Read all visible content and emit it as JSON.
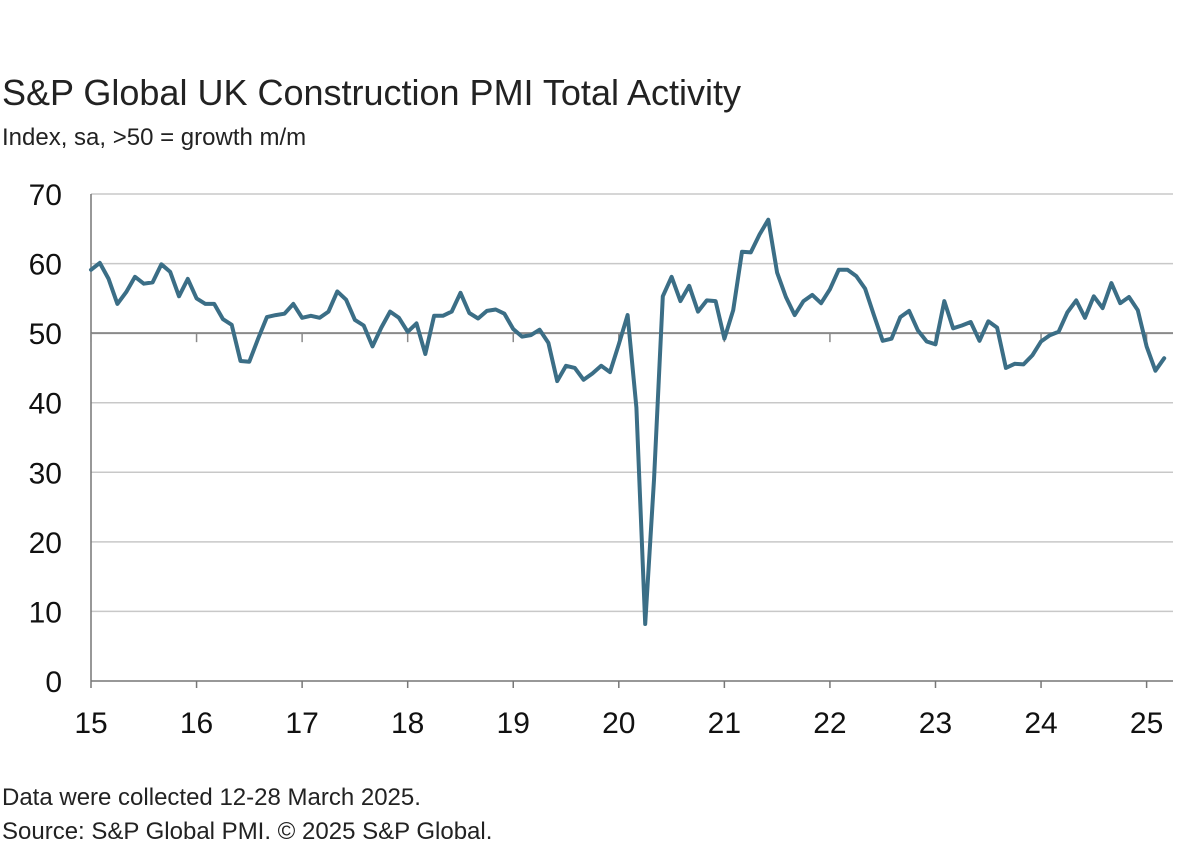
{
  "title": "S&P Global UK Construction PMI Total Activity",
  "subtitle": "Index, sa, >50 = growth m/m",
  "note": "Data were collected 12-28 March 2025.",
  "source": "Source: S&P Global PMI. © 2025 S&P Global.",
  "colors": {
    "line": "#3b6e86",
    "grid": "#c8c8c8",
    "axis": "#777777"
  },
  "chart_data": {
    "type": "line",
    "title": "S&P Global UK Construction PMI Total Activity",
    "subtitle": "Index, sa, >50 = growth m/m",
    "xlabel": "",
    "ylabel": "",
    "ylim": [
      0,
      70
    ],
    "xlim": [
      2015.0,
      2025.25
    ],
    "yticks": [
      0,
      10,
      20,
      30,
      40,
      50,
      60,
      70
    ],
    "xtick_labels": [
      {
        "label": "15",
        "value": 2015
      },
      {
        "label": "16",
        "value": 2016
      },
      {
        "label": "17",
        "value": 2017
      },
      {
        "label": "18",
        "value": 2018
      },
      {
        "label": "19",
        "value": 2019
      },
      {
        "label": "20",
        "value": 2020
      },
      {
        "label": "21",
        "value": 2021
      },
      {
        "label": "22",
        "value": 2022
      },
      {
        "label": "23",
        "value": 2023
      },
      {
        "label": "24",
        "value": 2024
      },
      {
        "label": "25",
        "value": 2025
      }
    ],
    "grid": true,
    "reference_line": 50,
    "start": "2015-01",
    "series": [
      {
        "values": [
          59.1,
          60.1,
          57.8,
          54.2,
          55.9,
          58.1,
          57.1,
          57.3,
          59.9,
          58.8,
          55.3,
          57.8,
          55.0,
          54.2,
          54.2,
          52.0,
          51.2,
          46.0,
          45.9,
          49.2,
          52.3,
          52.6,
          52.8,
          54.2,
          52.2,
          52.5,
          52.2,
          53.1,
          56.0,
          54.8,
          51.9,
          51.1,
          48.1,
          50.8,
          53.1,
          52.2,
          50.2,
          51.4,
          47.0,
          52.5,
          52.5,
          53.1,
          55.8,
          52.9,
          52.1,
          53.2,
          53.4,
          52.8,
          50.6,
          49.5,
          49.7,
          50.5,
          48.6,
          43.1,
          45.3,
          45.0,
          43.3,
          44.2,
          45.3,
          44.4,
          48.4,
          52.6,
          39.3,
          8.2,
          28.9,
          55.3,
          58.1,
          54.6,
          56.8,
          53.1,
          54.7,
          54.6,
          49.2,
          53.3,
          61.7,
          61.6,
          64.2,
          66.3,
          58.7,
          55.2,
          52.6,
          54.6,
          55.5,
          54.3,
          56.3,
          59.1,
          59.1,
          58.2,
          56.4,
          52.6,
          48.9,
          49.2,
          52.3,
          53.2,
          50.4,
          48.8,
          48.4,
          54.6,
          50.7,
          51.1,
          51.6,
          48.9,
          51.7,
          50.8,
          45.0,
          45.6,
          45.5,
          46.8,
          48.8,
          49.7,
          50.2,
          53.0,
          54.7,
          52.2,
          55.3,
          53.6,
          57.2,
          54.3,
          55.2,
          53.3,
          48.1,
          44.6,
          46.4
        ]
      }
    ]
  }
}
